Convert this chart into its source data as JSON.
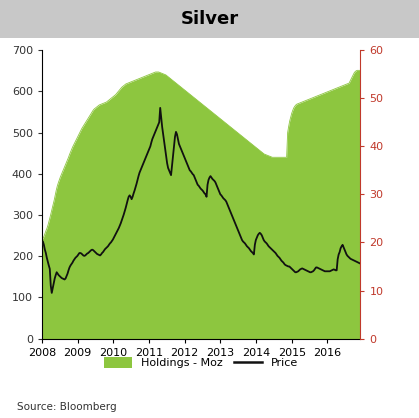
{
  "title": "Silver",
  "title_bg_color": "#c8c8c8",
  "source_text": "Source: Bloomberg",
  "left_ylim": [
    0,
    700
  ],
  "right_ylim": [
    0,
    60
  ],
  "left_yticks": [
    0,
    100,
    200,
    300,
    400,
    500,
    600,
    700
  ],
  "right_yticks": [
    0,
    10,
    20,
    30,
    40,
    50,
    60
  ],
  "holdings_color": "#8dc63f",
  "price_color": "#111111",
  "legend_holdings_label": "Holdings - Moz",
  "legend_price_label": "Price",
  "right_tick_color": "#c0392b",
  "x_start_year": 2008.0,
  "x_end_year": 2016.92,
  "year_ticks": [
    2008,
    2009,
    2010,
    2011,
    2012,
    2013,
    2014,
    2015,
    2016
  ],
  "holdings_monthly": [
    240,
    243,
    248,
    255,
    262,
    268,
    276,
    285,
    295,
    305,
    316,
    326,
    336,
    348,
    360,
    370,
    378,
    385,
    392,
    398,
    404,
    410,
    416,
    422,
    428,
    434,
    440,
    447,
    453,
    459,
    465,
    470,
    475,
    480,
    485,
    490,
    495,
    500,
    505,
    510,
    514,
    518,
    522,
    526,
    530,
    534,
    538,
    542,
    546,
    550,
    554,
    557,
    559,
    561,
    563,
    565,
    567,
    568,
    569,
    570,
    571,
    572,
    573,
    574,
    576,
    578,
    580,
    582,
    584,
    586,
    588,
    590,
    592,
    595,
    598,
    601,
    604,
    607,
    610,
    612,
    614,
    616,
    618,
    619,
    620,
    621,
    622,
    623,
    624,
    625,
    626,
    627,
    628,
    629,
    630,
    631,
    632,
    633,
    634,
    635,
    636,
    637,
    638,
    639,
    640,
    641,
    642,
    643,
    644,
    645,
    646,
    647,
    647,
    647,
    647,
    646,
    645,
    644,
    643,
    642,
    641,
    640,
    638,
    636,
    634,
    632,
    630,
    628,
    626,
    624,
    622,
    620,
    618,
    616,
    614,
    612,
    610,
    608,
    606,
    604,
    602,
    600,
    598,
    596,
    594,
    592,
    590,
    588,
    586,
    584,
    582,
    580,
    578,
    576,
    574,
    572,
    570,
    568,
    566,
    564,
    562,
    560,
    558,
    556,
    554,
    552,
    550,
    548,
    546,
    544,
    542,
    540,
    538,
    536,
    534,
    532,
    530,
    528,
    526,
    524,
    522,
    520,
    518,
    516,
    514,
    512,
    510,
    508,
    506,
    504,
    502,
    500,
    498,
    496,
    494,
    492,
    490,
    488,
    486,
    484,
    482,
    480,
    478,
    476,
    474,
    472,
    470,
    468,
    466,
    464,
    462,
    460,
    458,
    456,
    454,
    452,
    450,
    448,
    447,
    446,
    445,
    444,
    443,
    442,
    441,
    440,
    440,
    440,
    440,
    440,
    440,
    440,
    440,
    440,
    440,
    440,
    440,
    440,
    440,
    440,
    500,
    515,
    528,
    538,
    547,
    554,
    560,
    564,
    567,
    569,
    570,
    571,
    572,
    573,
    574,
    575,
    576,
    577,
    578,
    579,
    580,
    581,
    582,
    583,
    584,
    585,
    586,
    587,
    588,
    589,
    590,
    591,
    592,
    593,
    594,
    595,
    596,
    597,
    598,
    599,
    600,
    601,
    602,
    603,
    604,
    605,
    606,
    607,
    608,
    609,
    610,
    611,
    612,
    613,
    614,
    615,
    616,
    617,
    618,
    619,
    620,
    625,
    630,
    635,
    640,
    645,
    648,
    650,
    651,
    651,
    651,
    651
  ],
  "price_monthly": [
    19.5,
    20.2,
    19.5,
    18.5,
    17.8,
    16.8,
    16.0,
    15.2,
    14.5,
    11.0,
    9.5,
    10.5,
    11.5,
    12.5,
    13.2,
    13.8,
    13.5,
    13.2,
    13.0,
    12.8,
    12.6,
    12.5,
    12.4,
    12.3,
    12.5,
    13.0,
    13.5,
    14.2,
    14.8,
    15.2,
    15.5,
    15.8,
    16.2,
    16.5,
    16.8,
    17.0,
    17.2,
    17.5,
    17.8,
    17.8,
    17.7,
    17.5,
    17.3,
    17.2,
    17.3,
    17.5,
    17.7,
    17.8,
    18.0,
    18.2,
    18.4,
    18.5,
    18.4,
    18.2,
    18.0,
    17.8,
    17.6,
    17.5,
    17.4,
    17.3,
    17.5,
    17.8,
    18.0,
    18.3,
    18.6,
    18.8,
    19.0,
    19.2,
    19.5,
    19.8,
    20.0,
    20.3,
    20.6,
    21.0,
    21.4,
    21.8,
    22.2,
    22.6,
    23.0,
    23.5,
    24.0,
    24.6,
    25.2,
    25.8,
    26.5,
    27.2,
    28.0,
    28.8,
    29.5,
    29.8,
    29.5,
    29.0,
    29.5,
    30.2,
    30.8,
    31.5,
    32.2,
    33.0,
    33.8,
    34.5,
    35.0,
    35.5,
    36.0,
    36.5,
    37.0,
    37.5,
    38.0,
    38.5,
    39.0,
    39.5,
    40.0,
    40.8,
    41.5,
    42.0,
    42.5,
    43.0,
    43.5,
    44.0,
    44.5,
    45.0,
    48.0,
    46.0,
    44.0,
    42.5,
    41.0,
    39.5,
    38.0,
    36.5,
    35.5,
    35.0,
    34.5,
    34.0,
    36.0,
    38.0,
    40.0,
    42.0,
    43.0,
    42.5,
    41.5,
    40.5,
    40.0,
    39.5,
    39.0,
    38.5,
    38.0,
    37.5,
    37.0,
    36.5,
    36.0,
    35.5,
    35.0,
    34.8,
    34.5,
    34.2,
    34.0,
    33.5,
    33.0,
    32.5,
    32.0,
    31.8,
    31.5,
    31.2,
    31.0,
    30.8,
    30.5,
    30.2,
    30.0,
    29.5,
    32.0,
    33.0,
    33.5,
    33.8,
    33.5,
    33.2,
    33.0,
    32.8,
    32.5,
    32.0,
    31.5,
    31.0,
    30.5,
    30.0,
    29.8,
    29.5,
    29.2,
    29.0,
    28.8,
    28.5,
    28.0,
    27.5,
    27.0,
    26.5,
    26.0,
    25.5,
    25.0,
    24.5,
    24.0,
    23.5,
    23.0,
    22.5,
    22.0,
    21.5,
    21.0,
    20.5,
    20.2,
    20.0,
    19.8,
    19.5,
    19.2,
    19.0,
    18.8,
    18.5,
    18.2,
    18.0,
    17.8,
    17.5,
    19.5,
    20.5,
    21.0,
    21.5,
    21.8,
    22.0,
    21.8,
    21.5,
    21.0,
    20.5,
    20.2,
    20.0,
    19.8,
    19.5,
    19.2,
    19.0,
    18.8,
    18.6,
    18.4,
    18.2,
    18.0,
    17.8,
    17.5,
    17.2,
    17.0,
    16.8,
    16.5,
    16.2,
    16.0,
    15.8,
    15.5,
    15.3,
    15.2,
    15.1,
    15.0,
    15.0,
    14.8,
    14.6,
    14.4,
    14.2,
    14.0,
    13.8,
    13.8,
    13.9,
    14.0,
    14.2,
    14.4,
    14.5,
    14.6,
    14.5,
    14.4,
    14.3,
    14.2,
    14.1,
    14.0,
    13.9,
    13.8,
    13.8,
    13.9,
    14.0,
    14.2,
    14.5,
    14.8,
    14.8,
    14.7,
    14.6,
    14.5,
    14.4,
    14.3,
    14.2,
    14.1,
    14.0,
    14.0,
    14.0,
    14.0,
    14.0,
    14.0,
    14.1,
    14.2,
    14.3,
    14.4,
    14.3,
    14.2,
    14.2,
    16.5,
    17.5,
    18.0,
    18.8,
    19.2,
    19.5,
    19.0,
    18.5,
    18.0,
    17.5,
    17.2,
    17.0,
    16.8,
    16.6,
    16.5,
    16.4,
    16.3,
    16.2,
    16.1,
    16.0,
    15.9,
    15.8,
    15.7,
    15.6
  ]
}
